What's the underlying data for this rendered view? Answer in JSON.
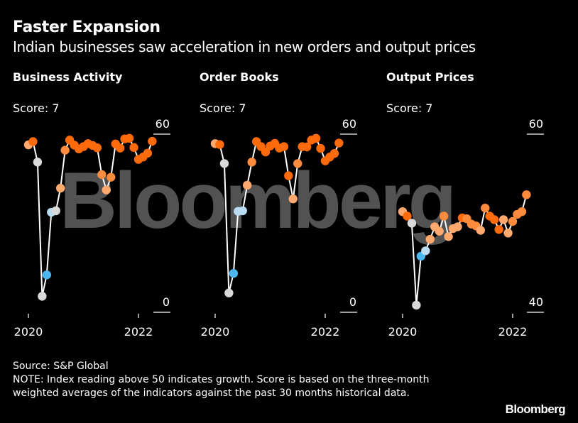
{
  "header": {
    "title": "Faster Expansion",
    "subtitle": "Indian businesses saw acceleration in new orders and output prices"
  },
  "watermark": "Bloomberg",
  "footer": {
    "source": "Source: S&P Global",
    "note": "NOTE: Index reading above 50 indicates growth. Score is based on the three-month weighted averages of the indicators against the past 30 months historical data.",
    "brand": "Bloomberg"
  },
  "colors": {
    "background": "#000000",
    "line": "#ffffff",
    "dark_orange": "#ff6a0a",
    "mid_orange": "#ff8b3d",
    "light_orange": "#ffa96e",
    "gray": "#d9d9d9",
    "light_blue": "#b9dcf2",
    "blue": "#4cb7ee"
  },
  "chart_data": [
    {
      "type": "line",
      "title": "Business Activity",
      "score_label": "Score: 7",
      "x_ticks": [
        "2020",
        "2022"
      ],
      "y_ticks": [
        "60",
        "0"
      ],
      "ylim": [
        0,
        60
      ],
      "x_start": "2020-01",
      "x": [
        "2020-01",
        "2020-02",
        "2020-03",
        "2020-04",
        "2020-05",
        "2020-06",
        "2020-07",
        "2020-08",
        "2020-09",
        "2020-10",
        "2020-11",
        "2020-12",
        "2021-01",
        "2021-02",
        "2021-03",
        "2021-04",
        "2021-05",
        "2021-06",
        "2021-07",
        "2021-08",
        "2021-09",
        "2021-10",
        "2021-11",
        "2021-12",
        "2022-01",
        "2022-02",
        "2022-03",
        "2022-04"
      ],
      "values": [
        56.4,
        57.5,
        50.6,
        5.4,
        12.6,
        33.7,
        34.2,
        41.8,
        54.6,
        58.0,
        56.3,
        55.0,
        55.8,
        56.8,
        56.2,
        55.4,
        46.4,
        41.2,
        45.5,
        56.7,
        55.3,
        58.4,
        58.6,
        55.5,
        51.5,
        52.3,
        53.6,
        57.6
      ],
      "categories": [
        "light_orange",
        "dark_orange",
        "gray",
        "gray",
        "blue",
        "light_blue",
        "gray",
        "light_orange",
        "mid_orange",
        "dark_orange",
        "dark_orange",
        "dark_orange",
        "dark_orange",
        "dark_orange",
        "dark_orange",
        "dark_orange",
        "mid_orange",
        "light_orange",
        "mid_orange",
        "dark_orange",
        "dark_orange",
        "dark_orange",
        "dark_orange",
        "dark_orange",
        "dark_orange",
        "dark_orange",
        "dark_orange",
        "dark_orange"
      ]
    },
    {
      "type": "line",
      "title": "Order Books",
      "score_label": "Score: 7",
      "x_ticks": [
        "2020",
        "2022"
      ],
      "y_ticks": [
        "60",
        "0"
      ],
      "ylim": [
        0,
        60
      ],
      "x_start": "2020-01",
      "x": [
        "2020-01",
        "2020-02",
        "2020-03",
        "2020-04",
        "2020-05",
        "2020-06",
        "2020-07",
        "2020-08",
        "2020-09",
        "2020-10",
        "2020-11",
        "2020-12",
        "2021-01",
        "2021-02",
        "2021-03",
        "2021-04",
        "2021-05",
        "2021-06",
        "2021-07",
        "2021-08",
        "2021-09",
        "2021-10",
        "2021-11",
        "2021-12",
        "2022-01",
        "2022-02",
        "2022-03",
        "2022-04"
      ],
      "values": [
        56.8,
        56.5,
        50.1,
        6.5,
        13.1,
        34.0,
        34.2,
        42.8,
        50.6,
        57.5,
        55.8,
        54.0,
        56.0,
        56.9,
        55.3,
        55.8,
        46.0,
        38.2,
        50.1,
        55.8,
        55.7,
        58.0,
        58.6,
        55.2,
        51.0,
        52.3,
        53.5,
        57.0
      ],
      "categories": [
        "light_orange",
        "dark_orange",
        "gray",
        "gray",
        "blue",
        "light_blue",
        "light_blue",
        "light_orange",
        "mid_orange",
        "dark_orange",
        "dark_orange",
        "dark_orange",
        "dark_orange",
        "dark_orange",
        "dark_orange",
        "dark_orange",
        "dark_orange",
        "light_orange",
        "mid_orange",
        "dark_orange",
        "dark_orange",
        "dark_orange",
        "dark_orange",
        "dark_orange",
        "dark_orange",
        "dark_orange",
        "dark_orange",
        "dark_orange"
      ]
    },
    {
      "type": "line",
      "title": "Output Prices",
      "score_label": "Score: 7",
      "x_ticks": [
        "2020",
        "2022"
      ],
      "y_ticks": [
        "60",
        "40"
      ],
      "ylim": [
        40,
        60
      ],
      "x_start": "2020-01",
      "x": [
        "2020-01",
        "2020-02",
        "2020-03",
        "2020-04",
        "2020-05",
        "2020-06",
        "2020-07",
        "2020-08",
        "2020-09",
        "2020-10",
        "2020-11",
        "2020-12",
        "2021-01",
        "2021-02",
        "2021-03",
        "2021-04",
        "2021-05",
        "2021-06",
        "2021-07",
        "2021-08",
        "2021-09",
        "2021-10",
        "2021-11",
        "2021-12",
        "2022-01",
        "2022-02",
        "2022-03",
        "2022-04"
      ],
      "values": [
        51.3,
        50.8,
        50.0,
        40.8,
        46.3,
        46.9,
        48.2,
        49.6,
        49.1,
        50.8,
        48.5,
        49.4,
        49.6,
        50.6,
        50.5,
        49.9,
        49.7,
        49.2,
        51.7,
        50.8,
        50.4,
        49.3,
        50.4,
        48.9,
        50.2,
        51.0,
        51.3,
        53.2
      ],
      "categories": [
        "light_orange",
        "dark_orange",
        "gray",
        "gray",
        "blue",
        "light_blue",
        "light_orange",
        "light_orange",
        "light_orange",
        "mid_orange",
        "light_orange",
        "light_orange",
        "light_orange",
        "dark_orange",
        "mid_orange",
        "mid_orange",
        "mid_orange",
        "light_orange",
        "mid_orange",
        "dark_orange",
        "dark_orange",
        "dark_orange",
        "light_orange",
        "light_orange",
        "mid_orange",
        "mid_orange",
        "mid_orange",
        "mid_orange"
      ]
    }
  ]
}
